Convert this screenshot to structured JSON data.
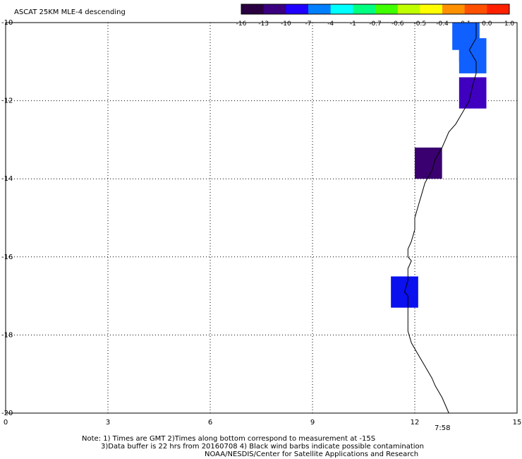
{
  "title": "ASCAT 25KM MLE-4 descending",
  "colorbar": {
    "labels": [
      "-16",
      "-13",
      "-10",
      "-7",
      "-4",
      "-1",
      "-0.7",
      "-0.6",
      "-0.5",
      "-0.4",
      "-0.1",
      "0.0",
      "1.0"
    ],
    "colors": [
      "#2a0040",
      "#3a0080",
      "#2000ff",
      "#0080ff",
      "#00ffff",
      "#00ff80",
      "#40ff00",
      "#c0ff00",
      "#ffff00",
      "#ff9000",
      "#ff5000",
      "#ff2000"
    ]
  },
  "axes": {
    "x_ticks": [
      "0",
      "3",
      "6",
      "9",
      "12",
      "15"
    ],
    "x_range": [
      0,
      15
    ],
    "y_ticks": [
      "-10",
      "-12",
      "-14",
      "-16",
      "-18",
      "-20"
    ],
    "y_range": [
      -20,
      -10
    ],
    "grid": "dotted"
  },
  "time_label": "7:58",
  "time_label_color": "#cc3300",
  "cells": [
    {
      "lon_min": 13.1,
      "lon_max": 13.9,
      "lat_min": -10.7,
      "lat_max": -10.0,
      "color": "#1060ff"
    },
    {
      "lon_min": 13.3,
      "lon_max": 14.1,
      "lat_min": -11.0,
      "lat_max": -10.4,
      "color": "#1060ff"
    },
    {
      "lon_min": 13.3,
      "lon_max": 14.1,
      "lat_min": -11.3,
      "lat_max": -10.7,
      "color": "#1060ff"
    },
    {
      "lon_min": 13.3,
      "lon_max": 14.1,
      "lat_min": -12.2,
      "lat_max": -11.4,
      "color": "#4000c0"
    },
    {
      "lon_min": 12.0,
      "lon_max": 12.8,
      "lat_min": -14.0,
      "lat_max": -13.2,
      "color": "#3a0070"
    },
    {
      "lon_min": 11.3,
      "lon_max": 12.1,
      "lat_min": -17.3,
      "lat_max": -16.5,
      "color": "#0a10ee"
    }
  ],
  "coastline": [
    [
      13.8,
      -10.0
    ],
    [
      13.8,
      -10.4
    ],
    [
      13.6,
      -10.7
    ],
    [
      13.8,
      -11.0
    ],
    [
      13.8,
      -11.3
    ],
    [
      13.7,
      -11.6
    ],
    [
      13.6,
      -12.0
    ],
    [
      13.4,
      -12.3
    ],
    [
      13.2,
      -12.6
    ],
    [
      13.0,
      -12.8
    ],
    [
      12.9,
      -13.0
    ],
    [
      12.8,
      -13.2
    ],
    [
      12.6,
      -13.5
    ],
    [
      12.5,
      -13.8
    ],
    [
      12.3,
      -14.1
    ],
    [
      12.2,
      -14.4
    ],
    [
      12.1,
      -14.7
    ],
    [
      12.0,
      -15.0
    ],
    [
      12.0,
      -15.3
    ],
    [
      11.9,
      -15.6
    ],
    [
      11.8,
      -15.8
    ],
    [
      11.8,
      -16.0
    ],
    [
      11.9,
      -16.1
    ],
    [
      11.8,
      -16.3
    ],
    [
      11.8,
      -16.6
    ],
    [
      11.7,
      -16.9
    ],
    [
      11.8,
      -17.0
    ],
    [
      11.8,
      -17.3
    ],
    [
      11.8,
      -17.6
    ],
    [
      11.8,
      -17.9
    ],
    [
      11.9,
      -18.2
    ],
    [
      12.1,
      -18.5
    ],
    [
      12.3,
      -18.8
    ],
    [
      12.5,
      -19.1
    ],
    [
      12.6,
      -19.3
    ],
    [
      12.8,
      -19.6
    ],
    [
      13.0,
      -20.0
    ]
  ],
  "notes": {
    "line1": "Note: 1) Times are GMT 2)Times along bottom correspond to measurement at -15S",
    "line2": "3)Data buffer is 22 hrs from 20160708 4) Black wind barbs indicate possible contamination",
    "line3": "NOAA/NESDIS/Center for Satellite Applications and Research"
  }
}
